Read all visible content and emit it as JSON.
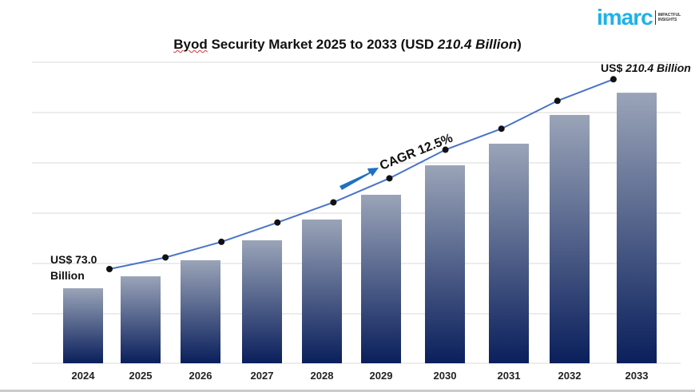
{
  "title_prefix": "Byod",
  "title_main": " Security Market 2025 to 2033 (USD ",
  "title_value": "210.4 Billion",
  "title_suffix": ")",
  "logo": {
    "word": "imarc",
    "tag_line1": "IMPACTFUL",
    "tag_line2": "INSIGHTS"
  },
  "chart_data": {
    "type": "bar",
    "title": "Byod Security Market 2025 to 2033 (USD 210.4 Billion)",
    "categories": [
      "2024",
      "2025",
      "2026",
      "2027",
      "2028",
      "2029",
      "2030",
      "2031",
      "2032",
      "2033"
    ],
    "values": [
      73.0,
      81.4,
      92.7,
      106.7,
      121.3,
      138.7,
      159.4,
      174.6,
      194.8,
      210.4
    ],
    "overlay_line": true,
    "grid": true,
    "bar_color_top": "#9aa4b8",
    "bar_color_bottom": "#0a1f5c",
    "line_color": "#4a74c9",
    "annotations": {
      "start_label_line1": "US$ 73.0",
      "start_label_line2": "Billion",
      "end_label_prefix": "US$ ",
      "end_label_value": "210.4 Billion",
      "cagr": "CAGR 12.5%"
    }
  }
}
